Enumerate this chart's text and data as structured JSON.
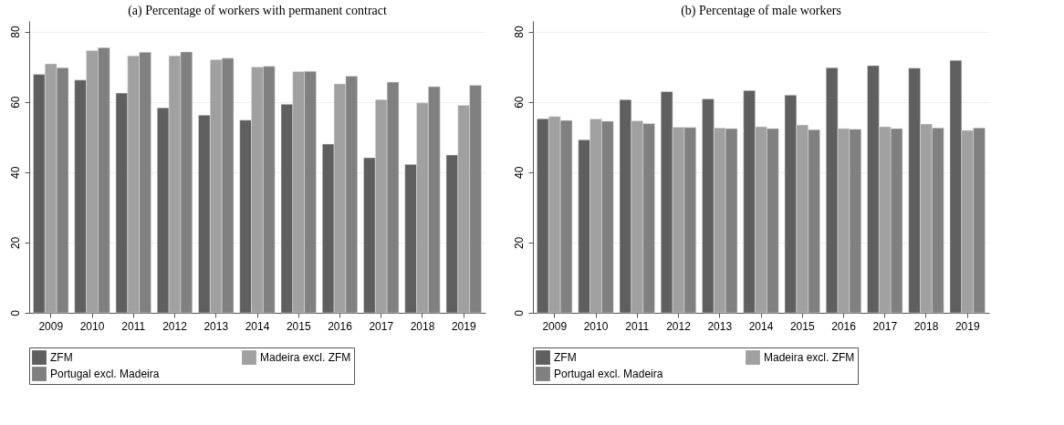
{
  "chart_data": [
    {
      "type": "bar",
      "title": "(a) Percentage of workers with permanent contract",
      "categories": [
        "2009",
        "2010",
        "2011",
        "2012",
        "2013",
        "2014",
        "2015",
        "2016",
        "2017",
        "2018",
        "2019"
      ],
      "ylim": [
        0,
        83
      ],
      "yticks": [
        0,
        20,
        40,
        60,
        80
      ],
      "grid": "y",
      "legend": "bottom",
      "series": [
        {
          "name": "ZFM",
          "color": "#5f5f5f",
          "values": [
            67.8,
            66.2,
            62.5,
            58.3,
            56.2,
            54.8,
            59.3,
            48.0,
            44.1,
            42.2,
            44.9
          ]
        },
        {
          "name": "Madeira excl. ZFM",
          "color": "#a0a0a0",
          "values": [
            70.8,
            74.6,
            73.1,
            73.1,
            72.0,
            69.9,
            68.6,
            65.1,
            60.6,
            59.7,
            59.0
          ]
        },
        {
          "name": "Portugal excl. Madeira",
          "color": "#808080",
          "values": [
            69.7,
            75.4,
            74.1,
            74.2,
            72.4,
            70.1,
            68.7,
            67.3,
            65.6,
            64.3,
            64.7
          ]
        }
      ]
    },
    {
      "type": "bar",
      "title": "(b) Percentage of male workers",
      "categories": [
        "2009",
        "2010",
        "2011",
        "2012",
        "2013",
        "2014",
        "2015",
        "2016",
        "2017",
        "2018",
        "2019"
      ],
      "ylim": [
        0,
        83
      ],
      "yticks": [
        0,
        20,
        40,
        60,
        80
      ],
      "grid": "y",
      "legend": "bottom",
      "series": [
        {
          "name": "ZFM",
          "color": "#5f5f5f",
          "values": [
            55.2,
            49.2,
            60.6,
            62.9,
            60.8,
            63.2,
            61.9,
            69.7,
            70.3,
            69.6,
            71.8
          ]
        },
        {
          "name": "Madeira excl. ZFM",
          "color": "#a0a0a0",
          "values": [
            55.8,
            55.1,
            54.6,
            52.8,
            52.6,
            52.9,
            53.4,
            52.4,
            52.9,
            53.7,
            51.9
          ]
        },
        {
          "name": "Portugal excl. Madeira",
          "color": "#808080",
          "values": [
            54.7,
            54.5,
            53.8,
            52.7,
            52.4,
            52.4,
            52.1,
            52.2,
            52.4,
            52.6,
            52.6
          ]
        }
      ]
    }
  ]
}
